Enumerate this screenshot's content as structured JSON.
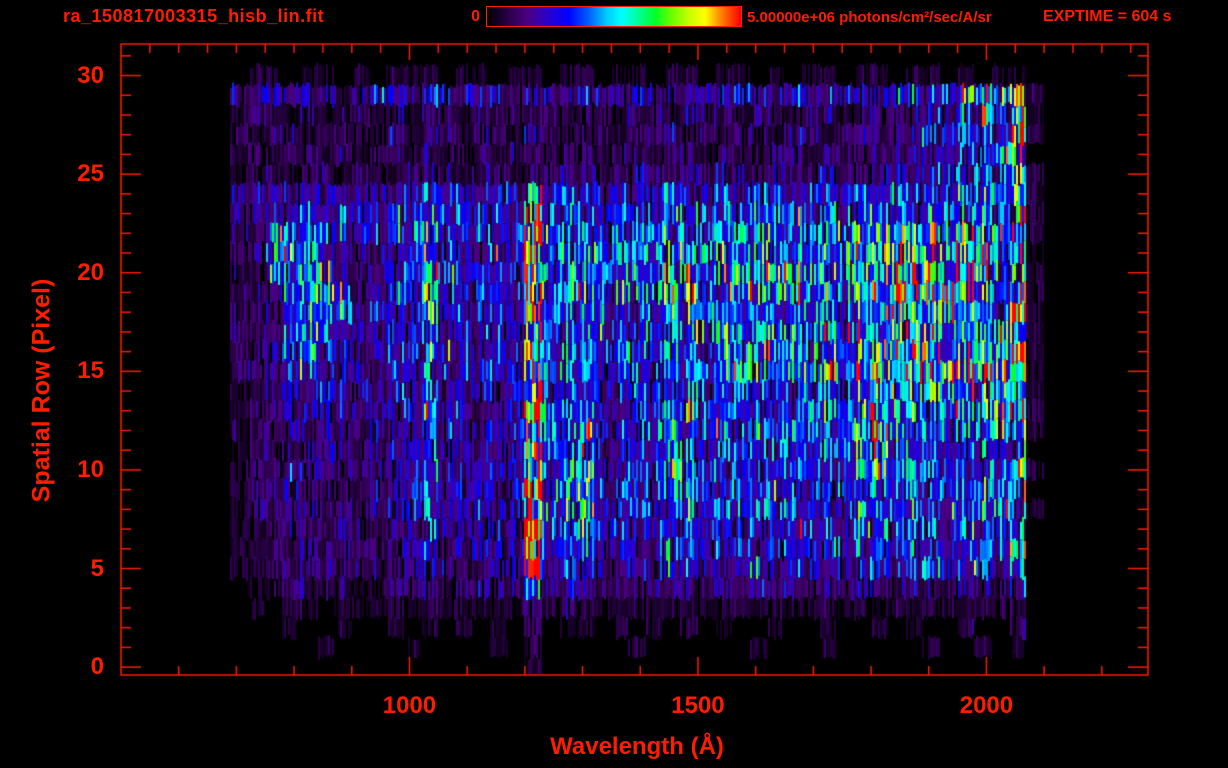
{
  "header": {
    "title": "ra_150817003315_hisb_lin.fit",
    "exptime": "EXPTIME = 604 s"
  },
  "colorbar": {
    "min_label": "0",
    "max_label": "5.00000e+06 photons/cm²/sec/A/sr",
    "min_value": 0,
    "max_value": 5000000,
    "units": "photons/cm²/sec/A/sr"
  },
  "chart_data": {
    "type": "heatmap",
    "title": "ra_150817003315_hisb_lin.fit",
    "xlabel": "Wavelength (Å)",
    "ylabel": "Spatial Row (Pixel)",
    "x_range": [
      500,
      2280
    ],
    "y_range": [
      -0.4,
      31.6
    ],
    "x_major_ticks": [
      1000,
      1500,
      2000
    ],
    "x_minor_step_bottom": 100,
    "x_minor_step_top": 50,
    "y_major_ticks": [
      0,
      5,
      10,
      15,
      20,
      25,
      30
    ],
    "y_minor_step": 1,
    "exposure_time_s": 604,
    "intensity_scale": {
      "min": 0,
      "max": 5000000,
      "units": "photons/cm²/sec/A/sr"
    },
    "axis_color": "#ff1c00",
    "background": "#000000",
    "colormap_stops": [
      [
        0.0,
        "#000000"
      ],
      [
        0.08,
        "#2a0048"
      ],
      [
        0.16,
        "#4b0082"
      ],
      [
        0.24,
        "#2a00d0"
      ],
      [
        0.32,
        "#0000ff"
      ],
      [
        0.4,
        "#0060ff"
      ],
      [
        0.47,
        "#00c8ff"
      ],
      [
        0.53,
        "#00ffff"
      ],
      [
        0.6,
        "#00ff90"
      ],
      [
        0.66,
        "#00ff2a"
      ],
      [
        0.72,
        "#60ff00"
      ],
      [
        0.8,
        "#ccff00"
      ],
      [
        0.86,
        "#ffff00"
      ],
      [
        0.92,
        "#ff8800"
      ],
      [
        1.0,
        "#ff0000"
      ]
    ],
    "heatmap_grid": {
      "description": "Estimated mean intensity per cell; rows ordered spatial row 30 (top) to 0 (bottom); columns are wavelength bins. Each hex digit 0-f maps linearly to 0 - 5.0e6 photons/cm2/sec/A/sr. Bright vertical stripe at 1200-1230 A (Ly-alpha), secondary stripes near 1025, 1300, 1460-1490, 1785-1830 A, bright green band rows 14-23 at 1500-2070 A, yellow horizontal streak at row 15 for 1650-2060 A, bright edge column at 2040-2070 A.",
      "lambda_start": 690,
      "lambda_step": 30,
      "columns": 48,
      "value_scale": "hex digit 0-15, 15 = 5e6",
      "rows": [
        "011011010111011011011011011011010110110110101100",
        "233433234334334334334334333434334334434556879b10",
        "122121221212212212212212212221221221222343565f10",
        "212212212412212213212212221212212212322344665a10",
        "121221212212122122122122122122122122222334656900",
        "122122122122212213222223223232232232233344565a10",
        "334343434345443449455444455444444444555565768a10",
        "33445454445645454b566555566565656565666566566910",
        "22778655455745545d667566677677676767888988889a10",
        "22787433445745454e667666678777777777999999999b10",
        "22678733445855545d6676666887778787879999a9a99910",
        "22368873455855554c667666689787878787999a99a99a10",
        "22348763445745444c556555578666767676888989898f10",
        "22358653444644444b556555578677777777999999999910",
        "22357543444644444c556555566677787787999aa9a99e10",
        "22346543444544444c556555566778888888aabbcbbcbe10",
        "12234443344534434b455444455566666666777877877910",
        "12233333334634334d56844556655555556598676767ae10",
        "12233332334533434e56944556655565655599666766a710",
        "12233332334533334f568444455455555555995656656600",
        "12233232334633334e568445577555555545885665656e10",
        "12333232334633334f568444466545555555775656566800",
        "12233232334533334e56844556645554554566565656b710",
        "11232232233533333f457444455454545454665565656900",
        "11222232233423333d456334455444444444554554554d00",
        "11222222223322233c344333344333434343444454454700",
        "011221211222122228233222222222323232332332332400",
        "010110111111111113121111111111111111111111111200",
        "000100100101010102011010101010010010010100100200",
        "000001000010000102000001000000100010000010010100",
        "000000000000000001000000000000000000000000000000"
      ]
    }
  }
}
